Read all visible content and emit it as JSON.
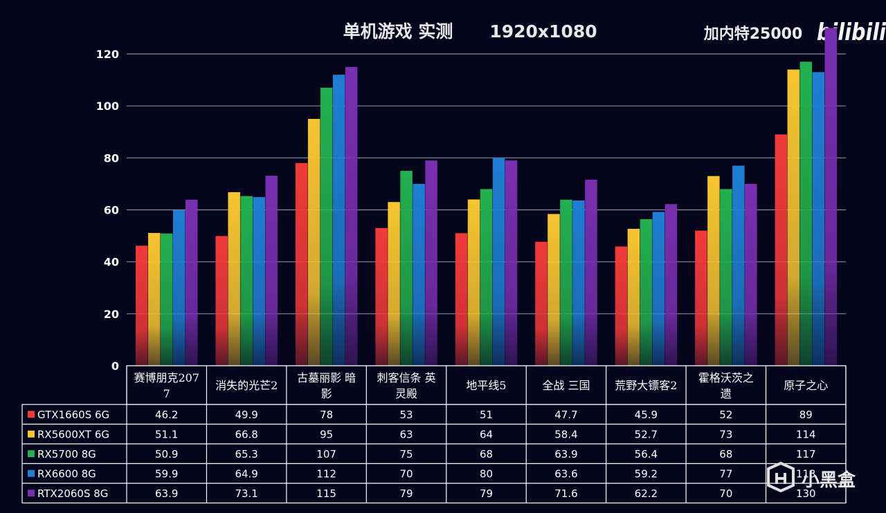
{
  "title": "单机游戏  实测",
  "resolution": "1920x1080",
  "brand": "加内特25000",
  "watermark_text": "小黑盒",
  "bilibili_logo": "bilibili",
  "chart_data": {
    "type": "bar",
    "title": "单机游戏  实测    1920x1080",
    "ylim": [
      0,
      130
    ],
    "yticks": [
      0,
      20,
      40,
      60,
      80,
      100,
      120
    ],
    "grid": true,
    "legend": "data-table-below",
    "categories": [
      "赛博朋克2077",
      "消失的光芒2",
      "古墓丽影 暗影",
      "刺客信条 英灵殿",
      "地平线5",
      "全战 三国",
      "荒野大镖客2",
      "霍格沃茨之遗",
      "原子之心"
    ],
    "category_lines": [
      [
        "赛博朋克207",
        "7"
      ],
      [
        "消失的光芒2"
      ],
      [
        "古墓丽影 暗",
        "影"
      ],
      [
        "刺客信条 英",
        "灵殿"
      ],
      [
        "地平线5"
      ],
      [
        "全战 三国"
      ],
      [
        "荒野大镖客2"
      ],
      [
        "霍格沃茨之",
        "遗"
      ],
      [
        "原子之心"
      ]
    ],
    "series": [
      {
        "name": "GTX1660S 6G",
        "color": "#f23a3a",
        "values": [
          46.2,
          49.9,
          78,
          53,
          51,
          47.7,
          45.9,
          52,
          89
        ]
      },
      {
        "name": "RX5600XT 6G",
        "color": "#f7c531",
        "values": [
          51.1,
          66.8,
          95,
          63,
          64,
          58.4,
          52.7,
          73,
          114
        ]
      },
      {
        "name": "RX5700 8G",
        "color": "#23b04f",
        "values": [
          50.9,
          65.3,
          107,
          75,
          68,
          63.9,
          56.4,
          68,
          117
        ]
      },
      {
        "name": "RX6600 8G",
        "color": "#1f7fd4",
        "values": [
          59.9,
          64.9,
          112,
          70,
          80,
          63.6,
          59.2,
          77,
          113
        ]
      },
      {
        "name": "RTX2060S 8G",
        "color": "#7a2fb0",
        "values": [
          63.9,
          73.1,
          115,
          79,
          79,
          71.6,
          62.2,
          70,
          130
        ]
      }
    ]
  }
}
